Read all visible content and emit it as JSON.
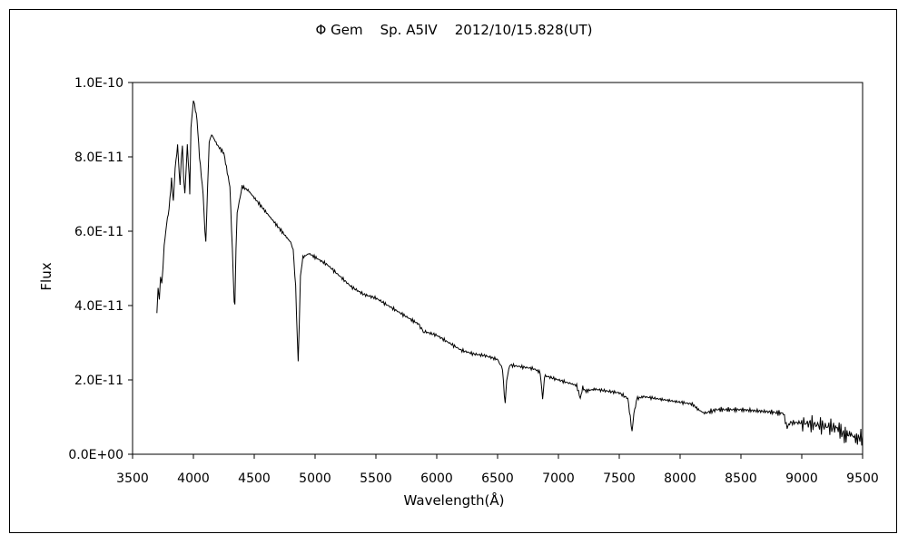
{
  "chart_data": {
    "type": "line",
    "title": "Φ Gem    Sp. A5IV    2012/10/15.828(UT)",
    "xlabel": "Wavelength(Å)",
    "ylabel": "Flux",
    "xlim": [
      3500,
      9500
    ],
    "ylim": [
      0,
      1e-10
    ],
    "grid": false,
    "x_ticks": [
      3500,
      4000,
      4500,
      5000,
      5500,
      6000,
      6500,
      7000,
      7500,
      8000,
      8500,
      9000,
      9500
    ],
    "x_tick_labels": [
      "3500",
      "4000",
      "4500",
      "5000",
      "5500",
      "6000",
      "6500",
      "7000",
      "7500",
      "8000",
      "8500",
      "9000",
      "9500"
    ],
    "y_ticks": [
      0,
      2e-11,
      4e-11,
      6e-11,
      8e-11,
      1e-10
    ],
    "y_tick_labels": [
      "0.0E+00",
      "2.0E-11",
      "4.0E-11",
      "6.0E-11",
      "8.0E-11",
      "1.0E-10"
    ],
    "series": [
      {
        "color": "#000000",
        "x": [
          3700,
          3710,
          3720,
          3730,
          3740,
          3750,
          3760,
          3780,
          3800,
          3820,
          3835,
          3850,
          3870,
          3890,
          3900,
          3910,
          3920,
          3930,
          3950,
          3965,
          3970,
          3980,
          4000,
          4010,
          4030,
          4050,
          4080,
          4095,
          4102,
          4110,
          4130,
          4150,
          4200,
          4250,
          4300,
          4320,
          4335,
          4341,
          4350,
          4360,
          4400,
          4450,
          4500,
          4550,
          4600,
          4650,
          4700,
          4750,
          4800,
          4820,
          4840,
          4855,
          4861,
          4870,
          4880,
          4900,
          4950,
          5000,
          5100,
          5200,
          5300,
          5400,
          5500,
          5600,
          5700,
          5800,
          5850,
          5890,
          5900,
          6000,
          6100,
          6200,
          6300,
          6400,
          6500,
          6540,
          6555,
          6563,
          6575,
          6600,
          6700,
          6800,
          6850,
          6870,
          6875,
          6885,
          6900,
          7000,
          7100,
          7150,
          7180,
          7200,
          7220,
          7300,
          7400,
          7500,
          7570,
          7590,
          7605,
          7620,
          7640,
          7650,
          7700,
          7800,
          8000,
          8100,
          8150,
          8200,
          8300,
          8500,
          8700,
          8850,
          8880,
          8900,
          9000,
          9100,
          9200,
          9300,
          9350,
          9400,
          9450,
          9500
        ],
        "y": [
          3.8e-11,
          4.5e-11,
          4.2e-11,
          4.8e-11,
          4.6e-11,
          5e-11,
          5.6e-11,
          6.2e-11,
          6.6e-11,
          7.4e-11,
          6.8e-11,
          7.7e-11,
          8.3e-11,
          7.2e-11,
          7.9e-11,
          8.3e-11,
          7.4e-11,
          7e-11,
          8.3e-11,
          7.5e-11,
          7e-11,
          8.8e-11,
          9.5e-11,
          9.4e-11,
          9e-11,
          8e-11,
          7e-11,
          6e-11,
          5.7e-11,
          6.5e-11,
          8.4e-11,
          8.6e-11,
          8.3e-11,
          8.1e-11,
          7.2e-11,
          5.5e-11,
          4.1e-11,
          4e-11,
          5.5e-11,
          6.5e-11,
          7.2e-11,
          7.1e-11,
          6.9e-11,
          6.7e-11,
          6.5e-11,
          6.3e-11,
          6.1e-11,
          5.9e-11,
          5.7e-11,
          5.5e-11,
          4.5e-11,
          3e-11,
          2.5e-11,
          3.5e-11,
          4.8e-11,
          5.3e-11,
          5.4e-11,
          5.3e-11,
          5.1e-11,
          4.8e-11,
          4.5e-11,
          4.3e-11,
          4.2e-11,
          4e-11,
          3.8e-11,
          3.6e-11,
          3.5e-11,
          3.3e-11,
          3.3e-11,
          3.2e-11,
          3e-11,
          2.8e-11,
          2.7e-11,
          2.65e-11,
          2.55e-11,
          2.3e-11,
          1.6e-11,
          1.4e-11,
          2e-11,
          2.4e-11,
          2.35e-11,
          2.3e-11,
          2.2e-11,
          1.5e-11,
          1.7e-11,
          2.1e-11,
          2.1e-11,
          2e-11,
          1.9e-11,
          1.85e-11,
          1.5e-11,
          1.8e-11,
          1.7e-11,
          1.75e-11,
          1.7e-11,
          1.65e-11,
          1.5e-11,
          1e-11,
          6e-12,
          1.1e-11,
          1.4e-11,
          1.5e-11,
          1.55e-11,
          1.5e-11,
          1.4e-11,
          1.35e-11,
          1.2e-11,
          1.1e-11,
          1.2e-11,
          1.2e-11,
          1.15e-11,
          1.1e-11,
          7e-12,
          8.5e-12,
          8.5e-12,
          8e-12,
          7.5e-12,
          7e-12,
          5e-12,
          5.5e-12,
          4e-12,
          5e-12
        ]
      }
    ]
  }
}
